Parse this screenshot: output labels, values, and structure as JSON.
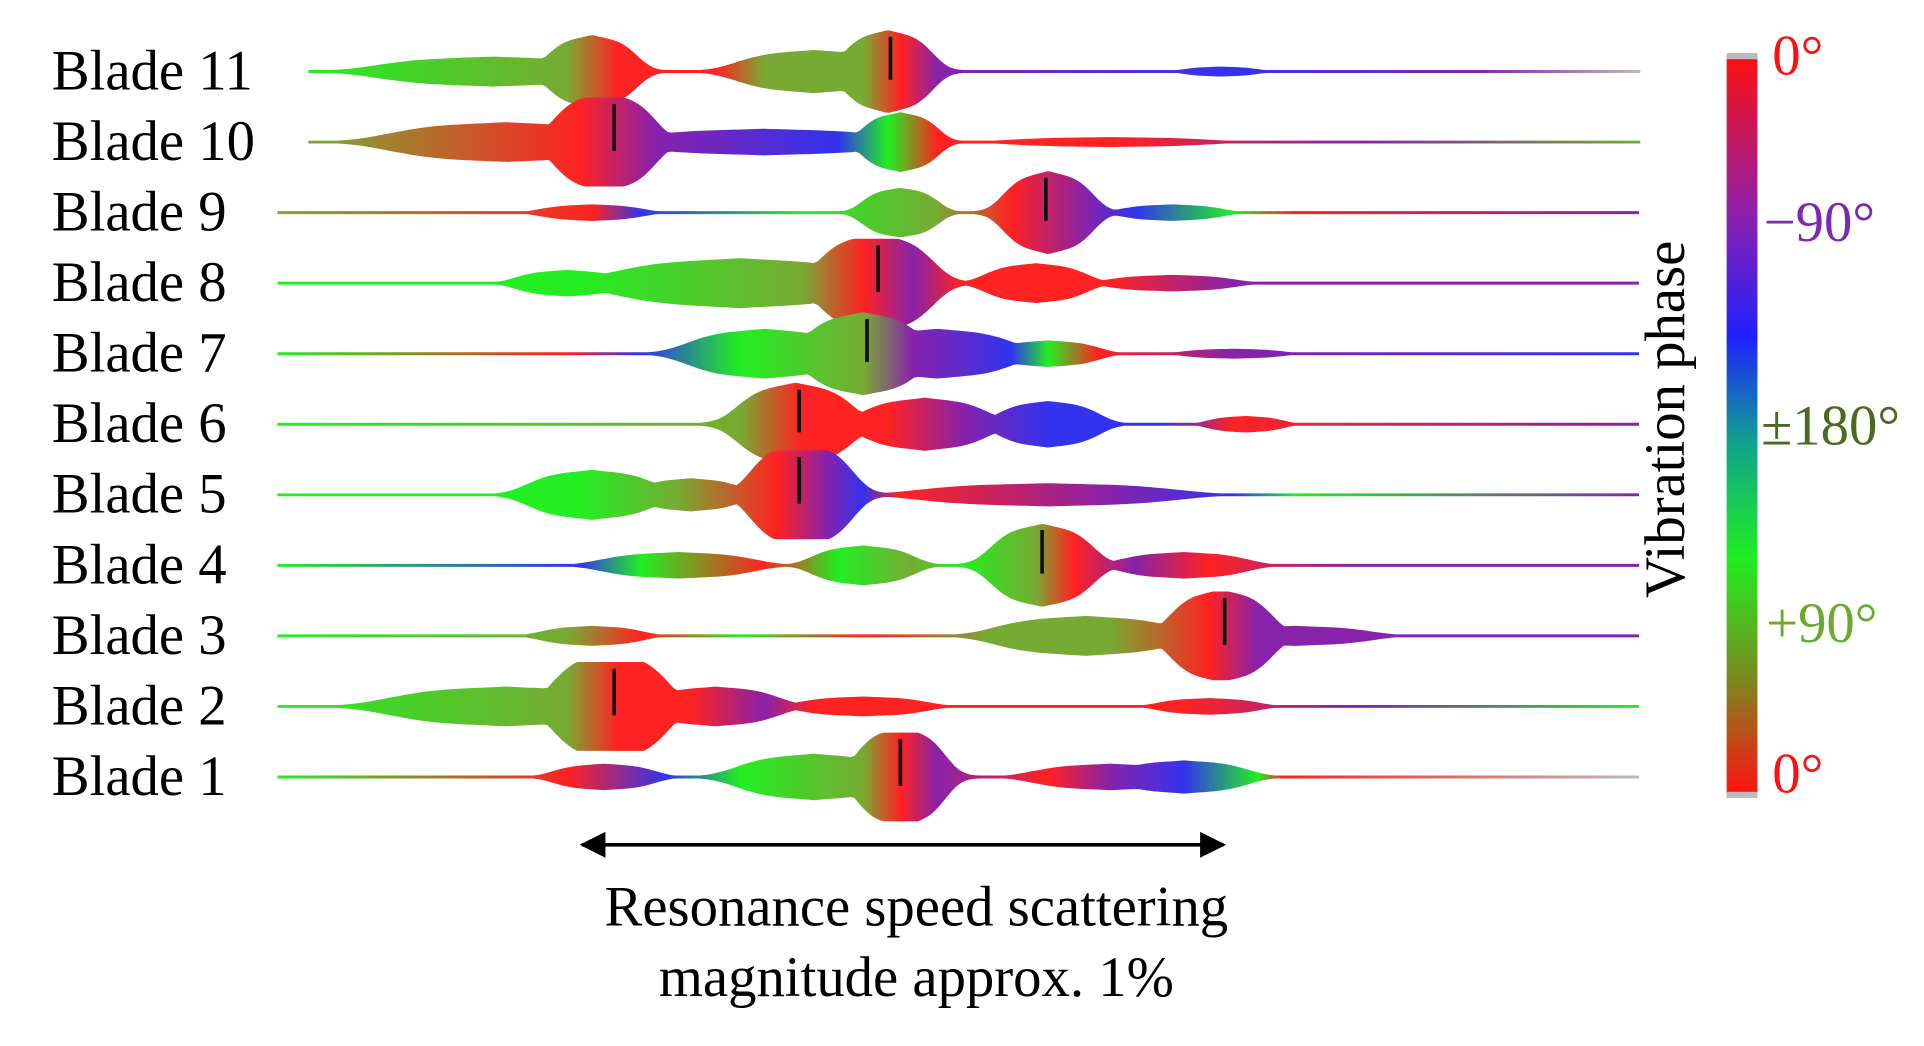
{
  "blades": [
    "Blade 11",
    "Blade 10",
    "Blade 9",
    "Blade 8",
    "Blade 7",
    "Blade 6",
    "Blade 5",
    "Blade 4",
    "Blade 3",
    "Blade 2",
    "Blade 1"
  ],
  "colorbar": {
    "title": "Vibration phase",
    "labels": [
      "0°",
      "−90°",
      "±180°",
      "+90°",
      "0°"
    ]
  },
  "annotation": [
    "Resonance speed scattering",
    "magnitude approx. 1%"
  ]
}
